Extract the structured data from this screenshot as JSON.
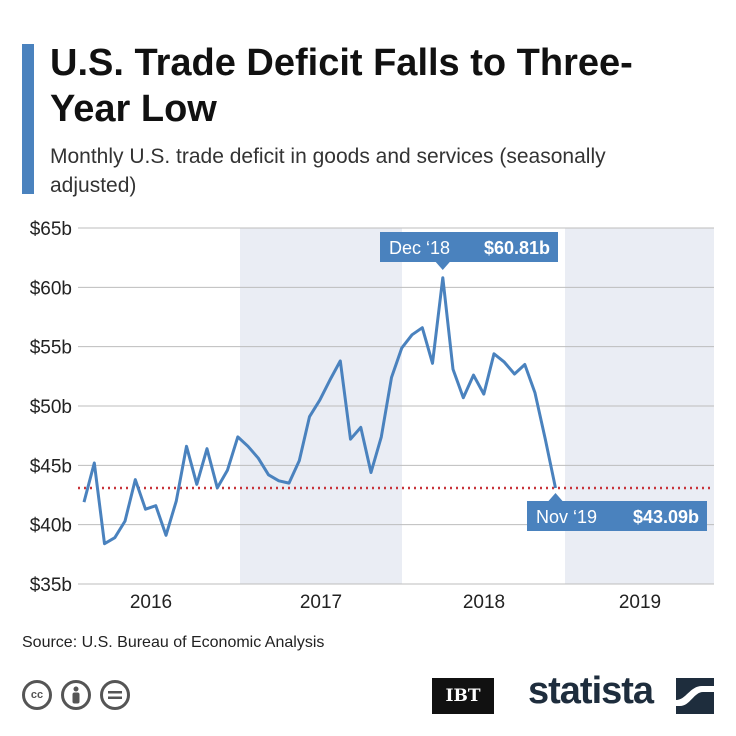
{
  "header": {
    "title": "U.S. Trade Deficit Falls to Three-Year Low",
    "subtitle": "Monthly U.S. trade deficit in goods and services (seasonally adjusted)"
  },
  "colors": {
    "accent": "#4a82be",
    "line": "#4a82be",
    "band": "#eaedf4",
    "reference_line": "#c8343a",
    "grid": "#bdbdbd"
  },
  "chart_data": {
    "type": "line",
    "title": "U.S. Trade Deficit Falls to Three-Year Low",
    "subtitle": "Monthly U.S. trade deficit in goods and services (seasonally adjusted)",
    "ylim": [
      35,
      65
    ],
    "yticks": [
      35,
      40,
      45,
      50,
      55,
      60,
      65
    ],
    "ytick_labels": [
      "$35b",
      "$40b",
      "$45b",
      "$50b",
      "$55b",
      "$60b",
      "$65b"
    ],
    "year_labels": [
      "2016",
      "2017",
      "2018",
      "2019"
    ],
    "shaded_years": [
      "2017",
      "2019"
    ],
    "grid": "horizontal",
    "series": [
      {
        "x": [
          "Jan 2016",
          "Feb 2016",
          "Mar 2016",
          "Apr 2016",
          "May 2016",
          "Jun 2016",
          "Jul 2016",
          "Aug 2016",
          "Sep 2016",
          "Oct 2016",
          "Nov 2016",
          "Dec 2016",
          "Jan 2017",
          "Feb 2017",
          "Mar 2017",
          "Apr 2017",
          "May 2017",
          "Jun 2017",
          "Jul 2017",
          "Aug 2017",
          "Sep 2017",
          "Oct 2017",
          "Nov 2017",
          "Dec 2017",
          "Jan 2018",
          "Feb 2018",
          "Mar 2018",
          "Apr 2018",
          "May 2018",
          "Jun 2018",
          "Jul 2018",
          "Aug 2018",
          "Sep 2018",
          "Oct 2018",
          "Nov 2018",
          "Dec 2018",
          "Jan 2019",
          "Feb 2019",
          "Mar 2019",
          "Apr 2019",
          "May 2019",
          "Jun 2019",
          "Jul 2019",
          "Aug 2019",
          "Sep 2019",
          "Oct 2019",
          "Nov 2019"
        ],
        "values": [
          41.9,
          45.2,
          38.4,
          38.9,
          40.3,
          43.8,
          41.3,
          41.6,
          39.1,
          42.0,
          46.6,
          43.4,
          46.4,
          43.1,
          44.6,
          47.4,
          46.6,
          45.6,
          44.2,
          43.7,
          43.5,
          45.4,
          49.1,
          50.5,
          52.2,
          53.8,
          47.2,
          48.2,
          44.4,
          47.4,
          52.4,
          54.9,
          56.0,
          56.6,
          53.6,
          60.81,
          53.1,
          50.7,
          52.6,
          51.0,
          54.4,
          53.7,
          52.7,
          53.5,
          51.1,
          47.2,
          43.09
        ]
      }
    ],
    "reference_line": 43.09,
    "annotations": [
      {
        "label": "Dec ‘18",
        "value": "$60.81b",
        "x": "Dec 2018",
        "y": 60.81
      },
      {
        "label": "Nov ‘19",
        "value": "$43.09b",
        "x": "Nov 2019",
        "y": 43.09
      }
    ]
  },
  "footer": {
    "source": "Source: U.S. Bureau of Economic Analysis",
    "cc_icons": [
      "cc-icon",
      "by-person-icon",
      "equals-nd-icon"
    ],
    "ibt_logo": "IBT",
    "statista_logo": "statista"
  }
}
